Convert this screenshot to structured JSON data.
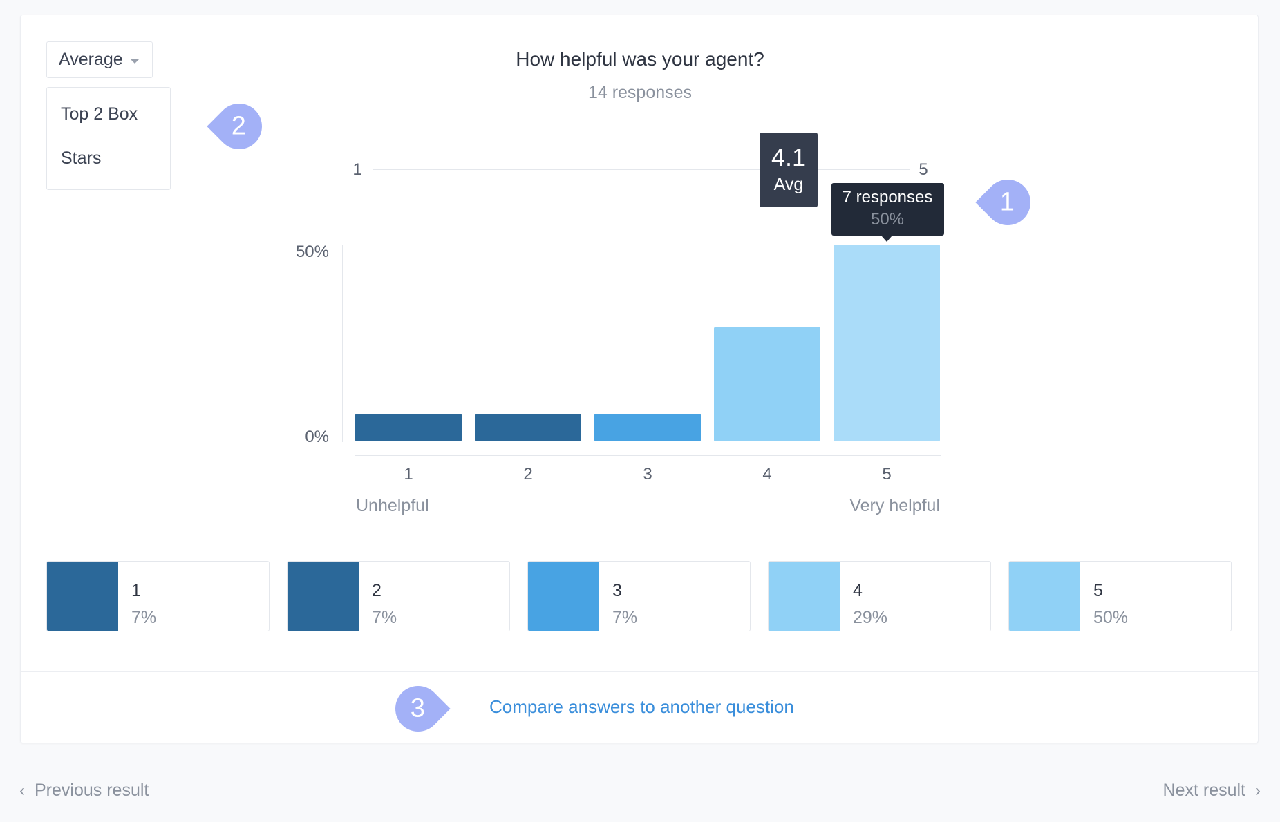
{
  "dropdown": {
    "selected": "Average"
  },
  "menu": {
    "items": [
      "Top 2 Box",
      "Stars"
    ]
  },
  "question": {
    "title": "How helpful was your agent?",
    "responses_label": "14 responses"
  },
  "average_scale": {
    "min_label": "1",
    "max_label": "5",
    "value": 4.1,
    "value_label": "4.1",
    "caption": "Avg"
  },
  "tooltip": {
    "responses": "7 responses",
    "percent": "50%"
  },
  "callouts": {
    "one": "1",
    "two": "2",
    "three": "3"
  },
  "chart_data": {
    "type": "bar",
    "categories": [
      "1",
      "2",
      "3",
      "4",
      "5"
    ],
    "values": [
      7,
      7,
      7,
      29,
      50
    ],
    "ylim": [
      0,
      50
    ],
    "y_tick_labels": [
      "50%",
      "0%"
    ],
    "x_end_labels": {
      "low": "Unhelpful",
      "high": "Very helpful"
    },
    "colors": [
      "#2b6899",
      "#2b6899",
      "#48a3e3",
      "#90d1f6",
      "#aadcf9"
    ],
    "grid": false
  },
  "legend": [
    {
      "label": "1",
      "percent": "7%",
      "color": "#2b6899"
    },
    {
      "label": "2",
      "percent": "7%",
      "color": "#2b6899"
    },
    {
      "label": "3",
      "percent": "7%",
      "color": "#48a3e3"
    },
    {
      "label": "4",
      "percent": "29%",
      "color": "#90d1f6"
    },
    {
      "label": "5",
      "percent": "50%",
      "color": "#90d1f6"
    }
  ],
  "footer": {
    "compare_link": "Compare answers to another question"
  },
  "navigation": {
    "previous": "Previous result",
    "next": "Next result"
  }
}
